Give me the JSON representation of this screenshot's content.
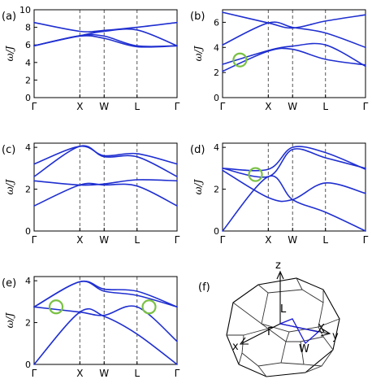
{
  "colors": {
    "band": "#1f2fd0",
    "ring": "#7ac143",
    "bz_path": "#1a1ad6"
  },
  "path_ticks": [
    "Γ",
    "X",
    "W",
    "L",
    "Γ"
  ],
  "ylabel": "ω/J",
  "panel_f": {
    "label": "(f)",
    "axes": [
      "z",
      "y",
      "x"
    ],
    "points": [
      "L",
      "Γ",
      "X",
      "W"
    ]
  },
  "chart_data": [
    {
      "type": "line",
      "label": "(a)",
      "xticks": [
        "Γ",
        "X",
        "W",
        "L",
        "Γ"
      ],
      "ylabel": "ω/J",
      "ylim": [
        0,
        10
      ],
      "yticks": [
        0,
        2,
        4,
        6,
        8,
        10
      ],
      "x": [
        0,
        1,
        2,
        3,
        4
      ],
      "series": [
        {
          "values": [
            8.55,
            7.55,
            7.65,
            8.0,
            8.55
          ]
        },
        {
          "values": [
            5.9,
            7.05,
            7.55,
            7.7,
            5.9
          ]
        },
        {
          "values": [
            5.9,
            7.05,
            7.0,
            5.9,
            5.9
          ]
        },
        {
          "values": [
            5.9,
            7.0,
            6.75,
            5.8,
            5.9
          ]
        }
      ],
      "rings": []
    },
    {
      "type": "line",
      "label": "(b)",
      "xticks": [
        "Γ",
        "X",
        "W",
        "L",
        "Γ"
      ],
      "ylabel": "ω/J",
      "ylim": [
        0,
        7
      ],
      "yticks": [
        0,
        2,
        4,
        6
      ],
      "x": [
        0,
        1,
        2,
        3,
        4
      ],
      "series": [
        {
          "values": [
            6.8,
            5.95,
            5.55,
            6.1,
            6.6
          ]
        },
        {
          "values": [
            4.2,
            5.95,
            5.6,
            5.15,
            4.0
          ]
        },
        {
          "values": [
            2.65,
            3.75,
            4.1,
            4.2,
            2.5
          ]
        },
        {
          "values": [
            2.1,
            3.7,
            3.85,
            3.05,
            2.6
          ]
        }
      ],
      "rings": [
        {
          "x": 0.38,
          "y": 3.0
        }
      ]
    },
    {
      "type": "line",
      "label": "(c)",
      "xticks": [
        "Γ",
        "X",
        "W",
        "L",
        "Γ"
      ],
      "ylabel": "ω/J",
      "ylim": [
        0,
        4.2
      ],
      "yticks": [
        0,
        2,
        4
      ],
      "x": [
        0,
        1,
        2,
        3,
        4
      ],
      "series": [
        {
          "values": [
            3.2,
            4.05,
            3.6,
            3.7,
            3.2
          ]
        },
        {
          "values": [
            2.6,
            4.05,
            3.55,
            3.55,
            2.6
          ]
        },
        {
          "values": [
            2.4,
            2.2,
            2.25,
            2.45,
            2.4
          ]
        },
        {
          "values": [
            1.2,
            2.2,
            2.2,
            2.15,
            1.2
          ]
        }
      ],
      "rings": []
    },
    {
      "type": "line",
      "label": "(d)",
      "xticks": [
        "Γ",
        "X",
        "W",
        "L",
        "Γ"
      ],
      "ylabel": "ω/J",
      "ylim": [
        0,
        4.2
      ],
      "yticks": [
        0,
        2,
        4
      ],
      "x": [
        0,
        1,
        2,
        3,
        4
      ],
      "series": [
        {
          "values": [
            3.0,
            2.95,
            4.0,
            3.75,
            2.95
          ]
        },
        {
          "values": [
            3.0,
            2.6,
            3.9,
            3.5,
            3.0
          ]
        },
        {
          "values": [
            2.9,
            1.6,
            1.5,
            2.3,
            1.8
          ]
        },
        {
          "values": [
            0.0,
            2.6,
            1.5,
            0.9,
            0.0
          ]
        }
      ],
      "rings": [
        {
          "x": 0.72,
          "y": 2.7
        }
      ]
    },
    {
      "type": "line",
      "label": "(e)",
      "xticks": [
        "Γ",
        "X",
        "W",
        "L",
        "Γ"
      ],
      "ylabel": "ω/J",
      "ylim": [
        0,
        4.2
      ],
      "yticks": [
        0,
        2,
        4
      ],
      "x": [
        0,
        1,
        2,
        3,
        4
      ],
      "series": [
        {
          "values": [
            2.75,
            3.95,
            3.6,
            3.5,
            2.75
          ]
        },
        {
          "values": [
            2.75,
            3.95,
            3.5,
            3.3,
            2.75
          ]
        },
        {
          "values": [
            2.75,
            2.5,
            2.35,
            2.75,
            1.1
          ]
        },
        {
          "values": [
            0.0,
            2.5,
            2.3,
            1.45,
            0.0
          ]
        }
      ],
      "rings": [
        {
          "x": 0.48,
          "y": 2.75
        },
        {
          "x": 3.3,
          "y": 2.75
        }
      ]
    }
  ]
}
